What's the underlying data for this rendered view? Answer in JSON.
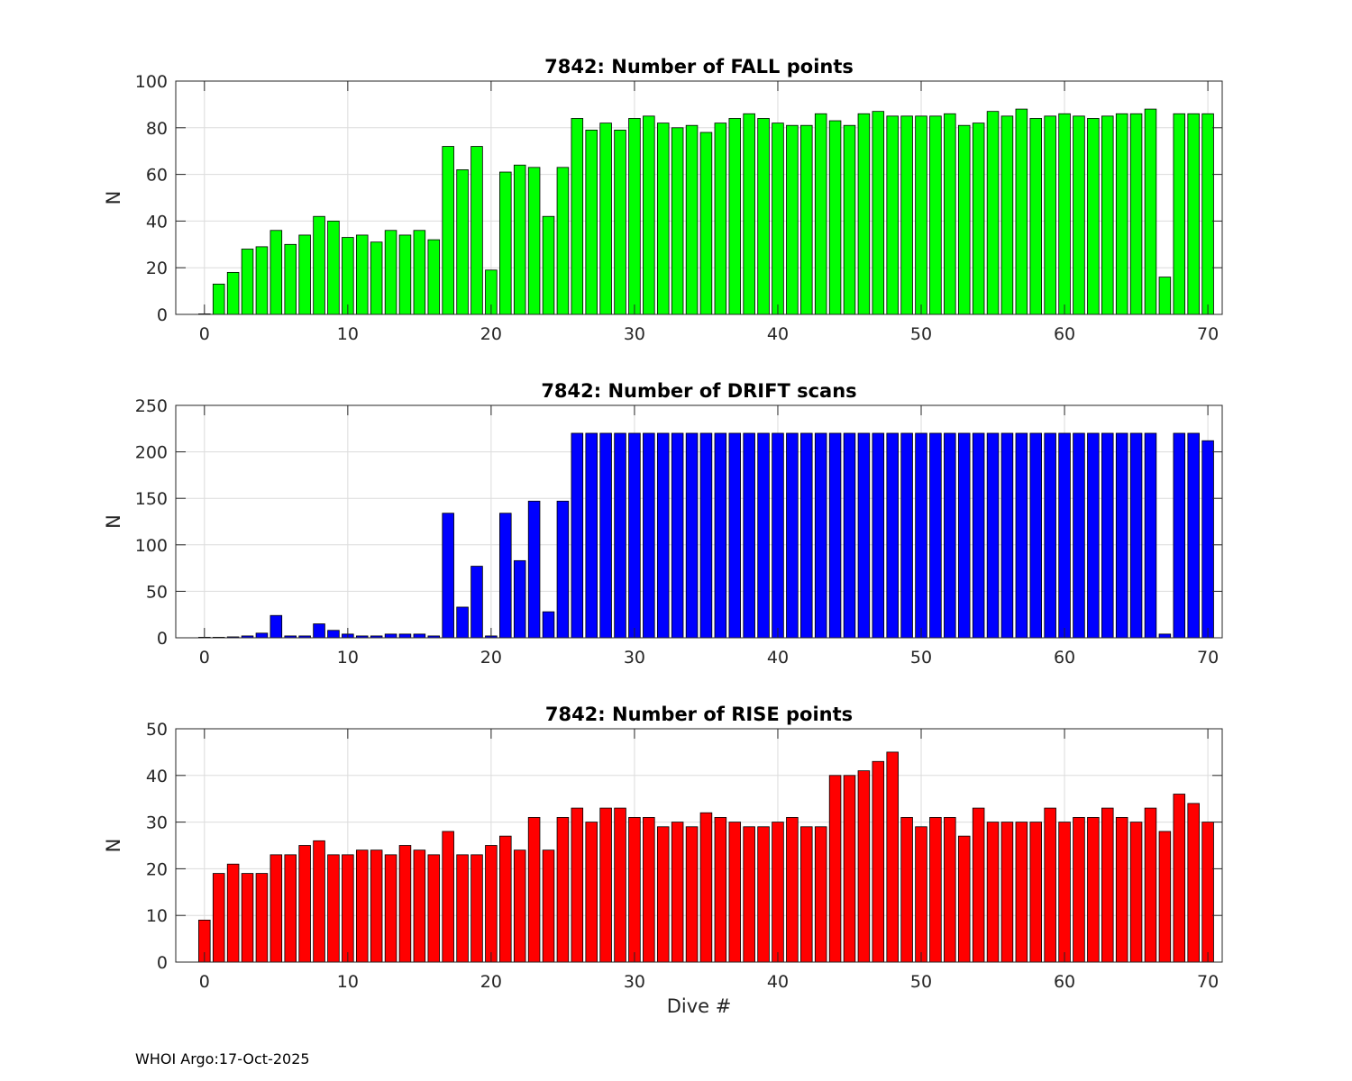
{
  "footer": "WHOI Argo:17-Oct-2025",
  "chart_data": [
    {
      "type": "bar",
      "title": "7842: Number of FALL points",
      "xlabel": "",
      "ylabel": "N",
      "ylim": [
        0,
        100
      ],
      "yticks": [
        0,
        20,
        40,
        60,
        80,
        100
      ],
      "xlim": [
        -2,
        71
      ],
      "xticks": [
        0,
        10,
        20,
        30,
        40,
        50,
        60,
        70
      ],
      "color": "#00ff00",
      "x": [
        0,
        1,
        2,
        3,
        4,
        5,
        6,
        7,
        8,
        9,
        10,
        11,
        12,
        13,
        14,
        15,
        16,
        17,
        18,
        19,
        20,
        21,
        22,
        23,
        24,
        25,
        26,
        27,
        28,
        29,
        30,
        31,
        32,
        33,
        34,
        35,
        36,
        37,
        38,
        39,
        40,
        41,
        42,
        43,
        44,
        45,
        46,
        47,
        48,
        49,
        50,
        51,
        52,
        53,
        54,
        55,
        56,
        57,
        58,
        59,
        60,
        61,
        62,
        63,
        64,
        65,
        66,
        67,
        68,
        69,
        70
      ],
      "values": [
        0,
        13,
        18,
        28,
        29,
        36,
        30,
        34,
        42,
        40,
        33,
        34,
        31,
        36,
        34,
        36,
        32,
        72,
        62,
        72,
        19,
        61,
        64,
        63,
        42,
        63,
        84,
        79,
        82,
        79,
        84,
        85,
        82,
        80,
        81,
        78,
        82,
        84,
        86,
        84,
        82,
        81,
        81,
        86,
        83,
        81,
        86,
        87,
        85,
        85,
        85,
        85,
        86,
        81,
        82,
        87,
        85,
        88,
        84,
        85,
        86,
        85,
        84,
        85,
        86,
        86,
        88,
        16,
        86,
        86,
        86
      ]
    },
    {
      "type": "bar",
      "title": "7842: Number of DRIFT scans",
      "xlabel": "",
      "ylabel": "N",
      "ylim": [
        0,
        250
      ],
      "yticks": [
        0,
        50,
        100,
        150,
        200,
        250
      ],
      "xlim": [
        -2,
        71
      ],
      "xticks": [
        0,
        10,
        20,
        30,
        40,
        50,
        60,
        70
      ],
      "color": "#0000ff",
      "x": [
        0,
        1,
        2,
        3,
        4,
        5,
        6,
        7,
        8,
        9,
        10,
        11,
        12,
        13,
        14,
        15,
        16,
        17,
        18,
        19,
        20,
        21,
        22,
        23,
        24,
        25,
        26,
        27,
        28,
        29,
        30,
        31,
        32,
        33,
        34,
        35,
        36,
        37,
        38,
        39,
        40,
        41,
        42,
        43,
        44,
        45,
        46,
        47,
        48,
        49,
        50,
        51,
        52,
        53,
        54,
        55,
        56,
        57,
        58,
        59,
        60,
        61,
        62,
        63,
        64,
        65,
        66,
        67,
        68,
        69,
        70
      ],
      "values": [
        0,
        0,
        1,
        2,
        5,
        24,
        2,
        2,
        15,
        8,
        4,
        2,
        2,
        4,
        4,
        4,
        2,
        134,
        33,
        77,
        2,
        134,
        83,
        147,
        28,
        147,
        220,
        220,
        220,
        220,
        220,
        220,
        220,
        220,
        220,
        220,
        220,
        220,
        220,
        220,
        220,
        220,
        220,
        220,
        220,
        220,
        220,
        220,
        220,
        220,
        220,
        220,
        220,
        220,
        220,
        220,
        220,
        220,
        220,
        220,
        220,
        220,
        220,
        220,
        220,
        220,
        220,
        4,
        220,
        220,
        212
      ]
    },
    {
      "type": "bar",
      "title": "7842: Number of RISE points",
      "xlabel": "Dive #",
      "ylabel": "N",
      "ylim": [
        0,
        50
      ],
      "yticks": [
        0,
        10,
        20,
        30,
        40,
        50
      ],
      "xlim": [
        -2,
        71
      ],
      "xticks": [
        0,
        10,
        20,
        30,
        40,
        50,
        60,
        70
      ],
      "color": "#ff0000",
      "x": [
        0,
        1,
        2,
        3,
        4,
        5,
        6,
        7,
        8,
        9,
        10,
        11,
        12,
        13,
        14,
        15,
        16,
        17,
        18,
        19,
        20,
        21,
        22,
        23,
        24,
        25,
        26,
        27,
        28,
        29,
        30,
        31,
        32,
        33,
        34,
        35,
        36,
        37,
        38,
        39,
        40,
        41,
        42,
        43,
        44,
        45,
        46,
        47,
        48,
        49,
        50,
        51,
        52,
        53,
        54,
        55,
        56,
        57,
        58,
        59,
        60,
        61,
        62,
        63,
        64,
        65,
        66,
        67,
        68,
        69,
        70
      ],
      "values": [
        9,
        19,
        21,
        19,
        19,
        23,
        23,
        25,
        26,
        23,
        23,
        24,
        24,
        23,
        25,
        24,
        23,
        28,
        23,
        23,
        25,
        27,
        24,
        31,
        24,
        31,
        33,
        30,
        33,
        33,
        31,
        31,
        29,
        30,
        29,
        32,
        31,
        30,
        29,
        29,
        30,
        31,
        29,
        29,
        40,
        40,
        41,
        43,
        45,
        31,
        29,
        31,
        31,
        27,
        33,
        30,
        30,
        30,
        30,
        33,
        30,
        31,
        31,
        33,
        31,
        30,
        33,
        28,
        36,
        34,
        30
      ]
    }
  ]
}
